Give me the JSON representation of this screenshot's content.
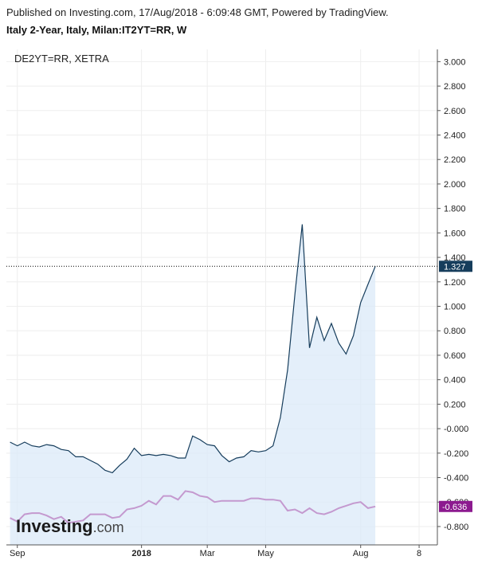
{
  "header": {
    "published": "Published on Investing.com, 17/Aug/2018 - 6:09:48 GMT, Powered by TradingView.",
    "title": "Italy 2-Year, Italy, Milan:IT2YT=RR, W"
  },
  "logo": {
    "main": "Investing",
    "sub": ".com"
  },
  "colors": {
    "primary_line": "#163d5c",
    "primary_fill": "#dbe9f8",
    "secondary_line": "#c499cf",
    "primary_badge": "#163d5c",
    "secondary_badge": "#8c1a8f",
    "grid": "#eeeeee"
  },
  "chart_data": {
    "type": "area",
    "legend": "DE2YT=RR, XETRA",
    "ylim": [
      -0.95,
      3.1
    ],
    "y_ticks": [
      "3.000",
      "2.800",
      "2.600",
      "2.400",
      "2.200",
      "2.000",
      "1.800",
      "1.600",
      "1.400",
      "1.200",
      "1.000",
      "0.800",
      "0.600",
      "0.400",
      "0.200",
      "-0.000",
      "-0.200",
      "-0.400",
      "-0.600",
      "-0.800"
    ],
    "x_ticks": [
      {
        "label": "Sep",
        "week": 1,
        "bold": false
      },
      {
        "label": "2018",
        "week": 18,
        "bold": true
      },
      {
        "label": "Mar",
        "week": 27,
        "bold": false
      },
      {
        "label": "May",
        "week": 35,
        "bold": false
      },
      {
        "label": "Aug",
        "week": 48,
        "bold": false
      },
      {
        "label": "8",
        "week": 56,
        "bold": false
      }
    ],
    "x_range": [
      -0.5,
      58.5
    ],
    "series": [
      {
        "name": "Italy 2-Year",
        "last": "1.327",
        "values": [
          -0.11,
          -0.14,
          -0.11,
          -0.14,
          -0.15,
          -0.13,
          -0.14,
          -0.17,
          -0.18,
          -0.23,
          -0.23,
          -0.26,
          -0.29,
          -0.34,
          -0.36,
          -0.3,
          -0.25,
          -0.16,
          -0.22,
          -0.21,
          -0.22,
          -0.21,
          -0.22,
          -0.24,
          -0.24,
          -0.06,
          -0.09,
          -0.13,
          -0.14,
          -0.22,
          -0.27,
          -0.24,
          -0.23,
          -0.18,
          -0.19,
          -0.18,
          -0.14,
          0.09,
          0.48,
          1.1,
          1.67,
          0.66,
          0.91,
          0.72,
          0.86,
          0.7,
          0.61,
          0.76,
          1.03,
          1.18,
          1.327
        ]
      },
      {
        "name": "DE2YT=RR, XETRA",
        "last": "-0.636",
        "values": [
          -0.73,
          -0.76,
          -0.7,
          -0.69,
          -0.69,
          -0.71,
          -0.74,
          -0.72,
          -0.77,
          -0.76,
          -0.75,
          -0.7,
          -0.7,
          -0.7,
          -0.73,
          -0.72,
          -0.66,
          -0.65,
          -0.63,
          -0.59,
          -0.62,
          -0.55,
          -0.55,
          -0.58,
          -0.51,
          -0.52,
          -0.55,
          -0.56,
          -0.6,
          -0.59,
          -0.59,
          -0.59,
          -0.59,
          -0.57,
          -0.57,
          -0.58,
          -0.58,
          -0.59,
          -0.67,
          -0.66,
          -0.69,
          -0.65,
          -0.69,
          -0.7,
          -0.68,
          -0.65,
          -0.63,
          -0.61,
          -0.6,
          -0.65,
          -0.636
        ]
      }
    ]
  }
}
